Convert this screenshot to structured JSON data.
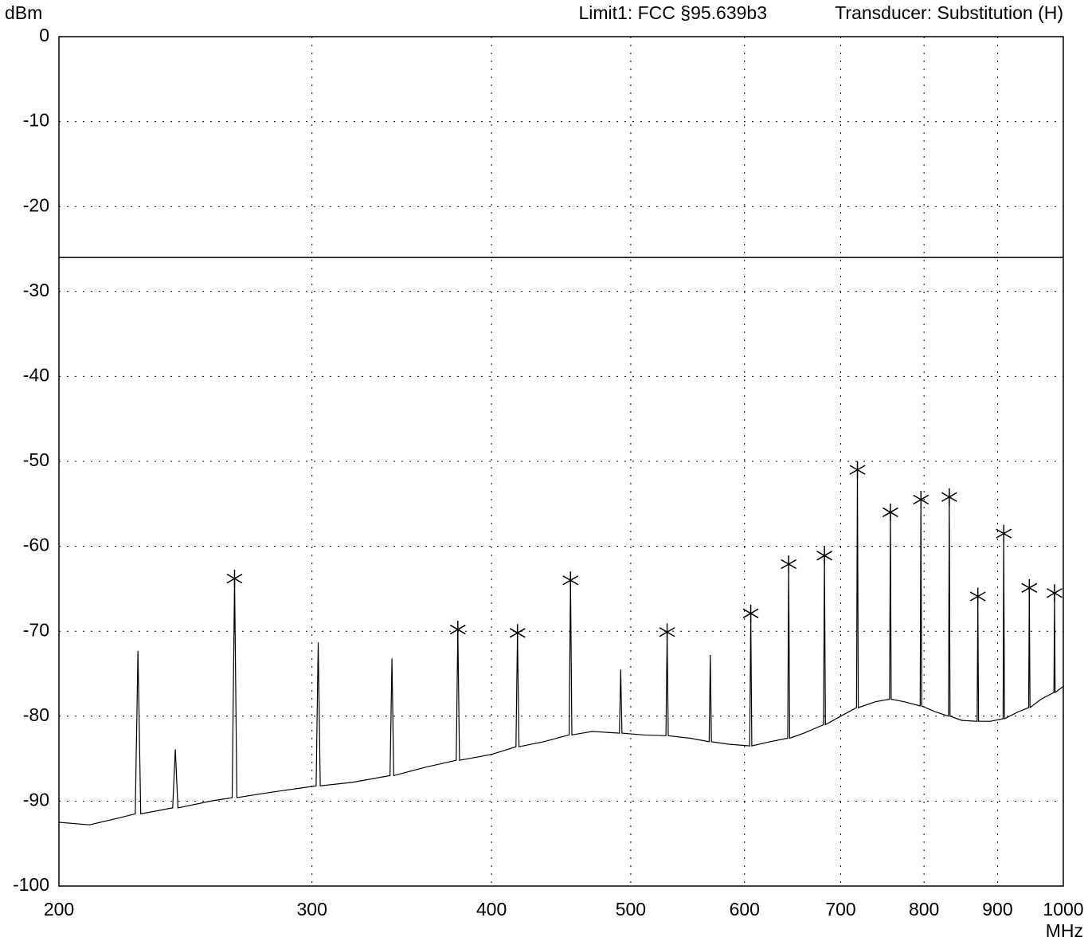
{
  "chart_data": {
    "type": "line",
    "x_scale": "log",
    "grid": true,
    "y_unit": "dBm",
    "x_unit": "MHz",
    "limit": {
      "label": "Limit1: FCC §95.639b3",
      "value": -26
    },
    "transducer": "Transducer: Substitution (H)",
    "xlim": [
      200,
      1000
    ],
    "xticks": [
      200,
      300,
      400,
      500,
      600,
      700,
      800,
      900,
      1000
    ],
    "ylim": [
      -100,
      0
    ],
    "yticks": [
      0,
      -10,
      -20,
      -30,
      -40,
      -50,
      -60,
      -70,
      -80,
      -90,
      -100
    ],
    "series": [
      {
        "color": "#000000",
        "x": [
          200,
          210,
          220,
          226,
          227,
          228,
          240,
          241,
          242,
          255,
          264,
          265,
          266,
          280,
          302,
          303,
          304,
          320,
          340,
          341,
          342,
          360,
          378,
          379,
          380,
          400,
          416,
          417,
          418,
          435,
          453,
          454,
          455,
          470,
          491,
          492,
          493,
          510,
          529,
          530,
          531,
          550,
          567,
          568,
          569,
          585,
          605,
          606,
          607,
          625,
          643,
          644,
          645,
          660,
          681,
          682,
          683,
          700,
          718,
          719,
          720,
          740,
          757,
          758,
          759,
          775,
          795,
          796,
          797,
          815,
          832,
          833,
          834,
          850,
          871,
          872,
          873,
          890,
          908,
          909,
          910,
          930,
          946,
          947,
          948,
          965,
          985,
          986,
          987,
          1000
        ],
        "values": [
          -92.5,
          -92.8,
          -92,
          -91.5,
          -72.3,
          -91.5,
          -90.8,
          -83.9,
          -90.8,
          -90,
          -89.6,
          -63.8,
          -89.6,
          -89,
          -88.2,
          -71.3,
          -88.2,
          -87.8,
          -87,
          -73.2,
          -87,
          -86,
          -85.2,
          -69.8,
          -85.2,
          -84.5,
          -83.6,
          -70.2,
          -83.6,
          -83,
          -82.2,
          -64,
          -82.2,
          -81.8,
          -82,
          -74.5,
          -82,
          -82.2,
          -82.3,
          -70.1,
          -82.3,
          -82.6,
          -83,
          -72.8,
          -83,
          -83.3,
          -83.5,
          -67.9,
          -83.5,
          -83,
          -82.6,
          -62.1,
          -82.6,
          -82,
          -81,
          -61.1,
          -81,
          -80,
          -79,
          -51,
          -79,
          -78.3,
          -78,
          -56,
          -78,
          -78.3,
          -78.8,
          -54.5,
          -78.8,
          -79.5,
          -80,
          -54.2,
          -80,
          -80.5,
          -80.6,
          -65.9,
          -80.6,
          -80.6,
          -80.3,
          -58.5,
          -80.3,
          -79.5,
          -79,
          -64.9,
          -79,
          -78,
          -77.2,
          -65.5,
          -77.2,
          -76.5
        ]
      },
      {
        "type": "marker",
        "color": "#000000",
        "x": [
          265,
          379,
          417,
          454,
          530,
          606,
          644,
          682,
          719,
          758,
          796,
          833,
          872,
          909,
          947,
          986
        ],
        "values": [
          -63.8,
          -69.8,
          -70.2,
          -64,
          -70.1,
          -67.9,
          -62.1,
          -61.1,
          -51,
          -56,
          -54.5,
          -54.2,
          -65.9,
          -58.5,
          -64.9,
          -65.5
        ]
      }
    ]
  }
}
